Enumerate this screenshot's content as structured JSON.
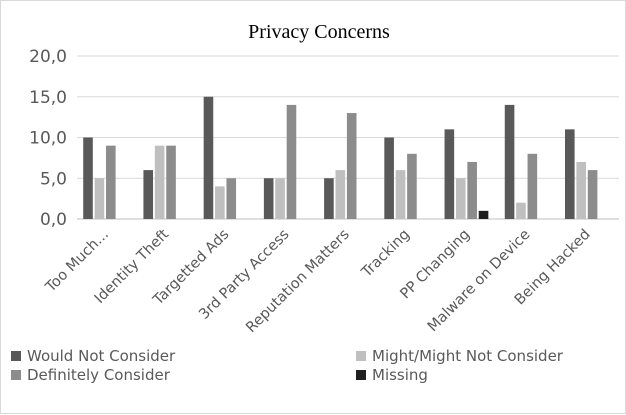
{
  "chart_data": {
    "type": "bar",
    "title": "Privacy Concerns",
    "categories": [
      "Too Much...",
      "Identity Theft",
      "Targetted Ads",
      "3rd Party Access",
      "Reputation Matters",
      "Tracking",
      "PP Changing",
      "Malware on Device",
      "Being Hacked"
    ],
    "series": [
      {
        "name": "Would Not Consider",
        "color": "#595959",
        "values": [
          10,
          6,
          15,
          5,
          5,
          10,
          11,
          14,
          11
        ]
      },
      {
        "name": "Might/Might Not Consider",
        "color": "#bfbfbf",
        "values": [
          5,
          9,
          4,
          5,
          6,
          6,
          5,
          2,
          7
        ]
      },
      {
        "name": "Definitely Consider",
        "color": "#8c8c8c",
        "values": [
          9,
          9,
          5,
          14,
          13,
          8,
          7,
          8,
          6
        ]
      },
      {
        "name": "Missing",
        "color": "#1f1f1f",
        "values": [
          0,
          0,
          0,
          0,
          0,
          0,
          1,
          0,
          0
        ]
      }
    ],
    "ylim": [
      0,
      20
    ],
    "yticks": [
      "0,0",
      "5,0",
      "10,0",
      "15,0",
      "20,0"
    ],
    "grid": true,
    "legend_position": "bottom"
  }
}
